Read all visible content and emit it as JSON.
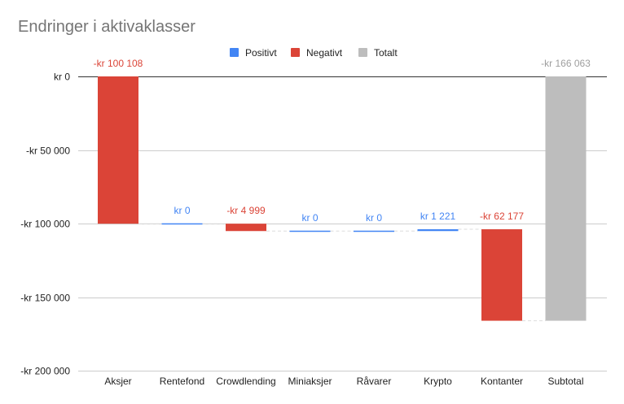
{
  "chart_data": {
    "type": "bar",
    "subtype": "waterfall",
    "title": "Endringer i aktivaklasser",
    "categories": [
      "Aksjer",
      "Rentefond",
      "Crowdlending",
      "Miniaksjer",
      "Råvarer",
      "Krypto",
      "Kontanter",
      "Subtotal"
    ],
    "steps": [
      {
        "category": "Aksjer",
        "kind": "Negativt",
        "start": 0,
        "end": -100108,
        "label": "-kr  100 108"
      },
      {
        "category": "Rentefond",
        "kind": "Positivt",
        "start": -100108,
        "end": -100108,
        "label": "kr  0"
      },
      {
        "category": "Crowdlending",
        "kind": "Negativt",
        "start": -100108,
        "end": -105107,
        "label": "-kr  4 999"
      },
      {
        "category": "Miniaksjer",
        "kind": "Positivt",
        "start": -105107,
        "end": -105107,
        "label": "kr  0"
      },
      {
        "category": "Råvarer",
        "kind": "Positivt",
        "start": -105107,
        "end": -105107,
        "label": "kr  0"
      },
      {
        "category": "Krypto",
        "kind": "Positivt",
        "start": -105107,
        "end": -103886,
        "label": "kr  1 221"
      },
      {
        "category": "Kontanter",
        "kind": "Negativt",
        "start": -103886,
        "end": -166063,
        "label": "-kr  62 177"
      },
      {
        "category": "Subtotal",
        "kind": "Totalt",
        "start": 0,
        "end": -166063,
        "label": "-kr  166 063"
      }
    ],
    "legend": {
      "position": "top",
      "entries": [
        {
          "name": "Positivt",
          "color": "#4285f4"
        },
        {
          "name": "Negativt",
          "color": "#db4437"
        },
        {
          "name": "Totalt",
          "color": "#bdbdbd"
        }
      ]
    },
    "yticks": [
      {
        "value": 0,
        "label": "kr  0"
      },
      {
        "value": -50000,
        "label": "-kr  50 000"
      },
      {
        "value": -100000,
        "label": "-kr  100 000"
      },
      {
        "value": -150000,
        "label": "-kr  150 000"
      },
      {
        "value": -200000,
        "label": "-kr  200 000"
      }
    ],
    "ylim": [
      -200000,
      0
    ],
    "grid": true,
    "colors": {
      "Positivt": "#4285f4",
      "Negativt": "#db4437",
      "Totalt": "#bdbdbd",
      "label_Totalt": "#9e9e9e"
    }
  }
}
